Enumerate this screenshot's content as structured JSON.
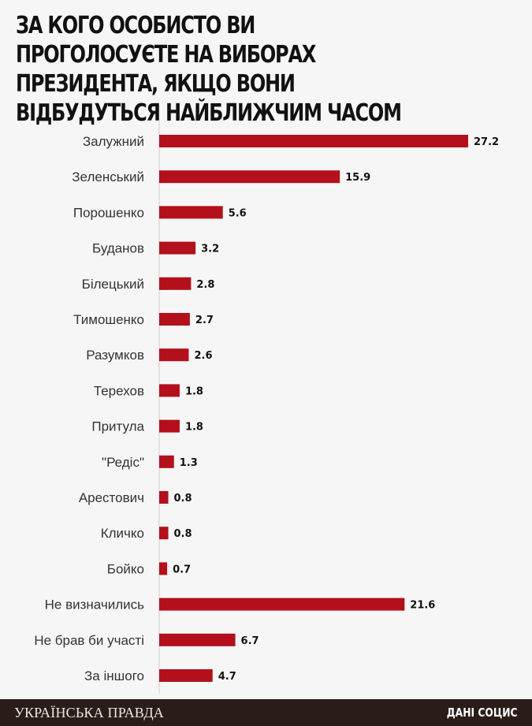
{
  "title": "За кого особисто ви проголосуєте на виборах президента, якщо вони відбудуться найближчим часом",
  "footer": {
    "logo_text": "УКРАЇНСЬКА ПРАВДА",
    "credit": "ДАНІ СОЦИС"
  },
  "colors": {
    "bar": "#b3101c",
    "axis": "#cfcfcf",
    "footer_bg": "#2a1d18"
  },
  "chart_data": {
    "type": "bar",
    "orientation": "horizontal",
    "title": "За кого особисто ви проголосуєте на виборах президента, якщо вони відбудуться найближчим часом",
    "xlabel": "",
    "ylabel": "",
    "grid": false,
    "categories": [
      "Залужний",
      "Зеленський",
      "Порошенко",
      "Буданов",
      "Білецький",
      "Тимошенко",
      "Разумков",
      "Терехов",
      "Притула",
      "\"Редіс\"",
      "Арестович",
      "Кличко",
      "Бойко",
      "Не визначились",
      "Не брав би участі",
      "За іншого"
    ],
    "values": [
      27.2,
      15.9,
      5.6,
      3.2,
      2.8,
      2.7,
      2.6,
      1.8,
      1.8,
      1.3,
      0.8,
      0.8,
      0.7,
      21.6,
      6.7,
      4.7
    ],
    "value_labels": [
      "27.2",
      "15.9",
      "5.6",
      "3.2",
      "2.8",
      "2.7",
      "2.6",
      "1.8",
      "1.8",
      "1.3",
      "0.8",
      "0.8",
      "0.7",
      "21.6",
      "6.7",
      "4.7"
    ]
  }
}
